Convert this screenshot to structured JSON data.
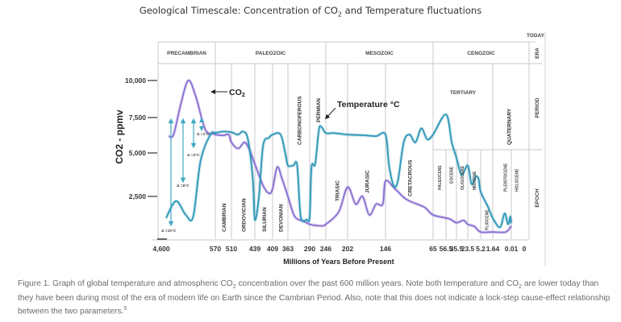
{
  "title": {
    "prefix": "Geological Timescale: Concentration of CO",
    "sub": "2",
    "suffix": " and Temperature fluctuations"
  },
  "caption": {
    "part1": "Figure 1. Graph of global temperature and atmospheric CO",
    "sub1": "2",
    "part2": " concentration over the past 600 million years. Note both temperature and CO",
    "sub2": "2",
    "part3": " are lower today than they have been during most of the era of modern life on Earth since the Cambrian Period. Also, note that this does not indicate a lock-step cause-effect relationship between the two parameters.",
    "sup": "5"
  },
  "chart_data": {
    "type": "line",
    "title": "Geological Timescale: Concentration of CO2 and Temperature fluctuations",
    "xlabel": "Millions of Years Before Present",
    "ylabel": "CO2 - ppmv",
    "today_label": "TODAY",
    "x_ticks": [
      "4,600",
      "570",
      "510",
      "439",
      "409",
      "363",
      "290",
      "246",
      "202",
      "146",
      "65",
      "56.5",
      "35.5",
      "23.5",
      "5.2",
      "1.64",
      "0.01",
      "0"
    ],
    "x_tick_values": [
      4600,
      570,
      510,
      439,
      409,
      363,
      290,
      246,
      202,
      146,
      65,
      56.5,
      35.5,
      23.5,
      5.2,
      1.64,
      0.01,
      0
    ],
    "y_ticks": [
      "10,000",
      "7,500",
      "5,000",
      "2,500"
    ],
    "y_tick_values": [
      10000,
      7500,
      5000,
      2500
    ],
    "ylim": [
      0,
      10500
    ],
    "row_labels": [
      "ERA",
      "PERIOD",
      "EPOCH"
    ],
    "eras": [
      {
        "name": "PRECAMBRIAN",
        "start": 4600,
        "end": 570
      },
      {
        "name": "PALEOZOIC",
        "start": 570,
        "end": 246
      },
      {
        "name": "MESOZOIC",
        "start": 246,
        "end": 65
      },
      {
        "name": "CENOZOIC",
        "start": 65,
        "end": 0
      }
    ],
    "periods": [
      {
        "name": "CAMBRIAN",
        "start": 570,
        "end": 510
      },
      {
        "name": "ORDOVICIAN",
        "start": 510,
        "end": 439
      },
      {
        "name": "SILURIAN",
        "start": 439,
        "end": 409
      },
      {
        "name": "DEVONIAN",
        "start": 409,
        "end": 363
      },
      {
        "name": "CARBONOFEROUS",
        "start": 363,
        "end": 290
      },
      {
        "name": "PERMIAN",
        "start": 290,
        "end": 246
      },
      {
        "name": "TRIASIC",
        "start": 246,
        "end": 202
      },
      {
        "name": "JURASIC",
        "start": 202,
        "end": 146
      },
      {
        "name": "CRETACROUS",
        "start": 146,
        "end": 65
      },
      {
        "name": "TERTIARY",
        "start": 65,
        "end": 1.64
      },
      {
        "name": "QUATERNARY",
        "start": 1.64,
        "end": 0
      }
    ],
    "epochs": [
      "PALEOCENE",
      "EOCENE",
      "OLIGOCENE",
      "MIOCENE",
      "PLIOCENE",
      "PLEISTOCENE",
      "HOLOCENE"
    ],
    "series": [
      {
        "name": "CO2",
        "color": "#8a6fd1",
        "points": [
          [
            -0.95,
            6400
          ],
          [
            -0.85,
            6500
          ],
          [
            -0.7,
            8500
          ],
          [
            -0.55,
            10000
          ],
          [
            -0.4,
            9000
          ],
          [
            -0.2,
            6800
          ],
          [
            0.0,
            6550
          ],
          [
            570,
            6500
          ],
          [
            540,
            6450
          ],
          [
            520,
            6500
          ],
          [
            510,
            6000
          ],
          [
            490,
            5600
          ],
          [
            470,
            6000
          ],
          [
            455,
            5500
          ],
          [
            439,
            4600
          ],
          [
            425,
            3200
          ],
          [
            415,
            2700
          ],
          [
            409,
            3000
          ],
          [
            395,
            4400
          ],
          [
            380,
            3600
          ],
          [
            363,
            2500
          ],
          [
            340,
            1200
          ],
          [
            310,
            900
          ],
          [
            290,
            700
          ],
          [
            260,
            600
          ],
          [
            246,
            700
          ],
          [
            220,
            1500
          ],
          [
            202,
            3100
          ],
          [
            190,
            2000
          ],
          [
            180,
            2500
          ],
          [
            170,
            1300
          ],
          [
            160,
            2000
          ],
          [
            150,
            2000
          ],
          [
            146,
            3500
          ],
          [
            130,
            3000
          ],
          [
            110,
            2300
          ],
          [
            80,
            1800
          ],
          [
            65,
            1300
          ],
          [
            50,
            1050
          ],
          [
            35.5,
            800
          ],
          [
            28,
            950
          ],
          [
            23.5,
            700
          ],
          [
            14,
            550
          ],
          [
            5.2,
            200
          ],
          [
            1.64,
            200
          ],
          [
            0.5,
            200
          ],
          [
            0.01,
            600
          ]
        ]
      },
      {
        "name": "Temperature °C",
        "color": "#2f97b8",
        "points": [
          [
            -1.0,
            1100
          ],
          [
            -0.8,
            2200
          ],
          [
            -0.6,
            1300
          ],
          [
            -0.45,
            1200
          ],
          [
            -0.3,
            4800
          ],
          [
            -0.1,
            6500
          ],
          [
            0.0,
            6600
          ],
          [
            570,
            6600
          ],
          [
            540,
            6700
          ],
          [
            510,
            6650
          ],
          [
            490,
            6500
          ],
          [
            475,
            6700
          ],
          [
            460,
            6200
          ],
          [
            445,
            3600
          ],
          [
            439,
            1000
          ],
          [
            432,
            2500
          ],
          [
            425,
            5800
          ],
          [
            415,
            6300
          ],
          [
            409,
            6500
          ],
          [
            385,
            6500
          ],
          [
            370,
            5200
          ],
          [
            363,
            4500
          ],
          [
            345,
            4500
          ],
          [
            332,
            4500
          ],
          [
            320,
            1200
          ],
          [
            300,
            1000
          ],
          [
            290,
            1200
          ],
          [
            285,
            4400
          ],
          [
            275,
            4600
          ],
          [
            265,
            6800
          ],
          [
            258,
            7000
          ],
          [
            246,
            6600
          ],
          [
            230,
            6600
          ],
          [
            202,
            6500
          ],
          [
            175,
            6450
          ],
          [
            160,
            6400
          ],
          [
            146,
            6500
          ],
          [
            140,
            4500
          ],
          [
            132,
            3200
          ],
          [
            125,
            3500
          ],
          [
            115,
            6000
          ],
          [
            105,
            6500
          ],
          [
            95,
            6000
          ],
          [
            85,
            6900
          ],
          [
            75,
            6200
          ],
          [
            65,
            6500
          ],
          [
            56.5,
            7800
          ],
          [
            45,
            6000
          ],
          [
            35.5,
            5000
          ],
          [
            30,
            3900
          ],
          [
            23.5,
            4500
          ],
          [
            18,
            3300
          ],
          [
            12,
            3800
          ],
          [
            8,
            3600
          ],
          [
            5.2,
            2800
          ],
          [
            3,
            1800
          ],
          [
            1.64,
            1100
          ],
          [
            1.0,
            500
          ],
          [
            0.6,
            1400
          ],
          [
            0.3,
            700
          ],
          [
            0.1,
            1200
          ],
          [
            0.05,
            800
          ],
          [
            0.01,
            1000
          ]
        ]
      }
    ],
    "annotations": [
      {
        "text": "CO2",
        "target_series": "CO2"
      },
      {
        "text": "Temperature °C",
        "target_series": "Temperature °C"
      },
      {
        "text": "Δ =1°C"
      },
      {
        "text": "Δ =3°C"
      },
      {
        "text": "Δ =6°C"
      },
      {
        "text": "Δ =10°C"
      }
    ],
    "grid": true
  }
}
